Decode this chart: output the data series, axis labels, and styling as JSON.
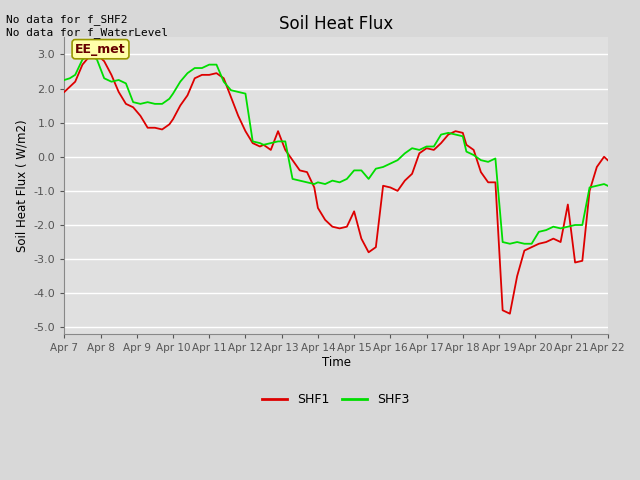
{
  "title": "Soil Heat Flux",
  "ylabel": "Soil Heat Flux ( W/m2)",
  "xlabel": "Time",
  "ylim": [
    -5.2,
    3.5
  ],
  "yticks": [
    -5.0,
    -4.0,
    -3.0,
    -2.0,
    -1.0,
    0.0,
    1.0,
    2.0,
    3.0
  ],
  "xtick_labels": [
    "Apr 7",
    "Apr 8",
    "Apr 9",
    "Apr 10",
    "Apr 11",
    "Apr 12",
    "Apr 13",
    "Apr 14",
    "Apr 15",
    "Apr 16",
    "Apr 17",
    "Apr 18",
    "Apr 19",
    "Apr 20",
    "Apr 21",
    "Apr 22"
  ],
  "fig_bg_color": "#d8d8d8",
  "plot_bg_color": "#e0e0e0",
  "grid_color": "#ffffff",
  "shf1_color": "#dd0000",
  "shf3_color": "#00dd00",
  "annotation_text": "No data for f_SHF2\nNo data for f_WaterLevel",
  "box_label": "EE_met",
  "shf1_x": [
    0,
    0.15,
    0.3,
    0.5,
    0.7,
    0.9,
    1.1,
    1.3,
    1.5,
    1.7,
    1.9,
    2.1,
    2.3,
    2.5,
    2.7,
    2.9,
    3.0,
    3.2,
    3.4,
    3.6,
    3.8,
    4.0,
    4.2,
    4.4,
    4.6,
    4.8,
    5.0,
    5.2,
    5.4,
    5.5,
    5.7,
    5.9,
    6.1,
    6.3,
    6.5,
    6.7,
    6.9,
    7.0,
    7.2,
    7.4,
    7.6,
    7.8,
    8.0,
    8.2,
    8.4,
    8.6,
    8.8,
    9.0,
    9.2,
    9.4,
    9.6,
    9.8,
    10.0,
    10.2,
    10.4,
    10.6,
    10.8,
    11.0,
    11.1,
    11.3,
    11.5,
    11.7,
    11.9,
    12.1,
    12.3,
    12.5,
    12.7,
    12.9,
    13.1,
    13.3,
    13.5,
    13.7,
    13.9,
    14.1,
    14.3,
    14.5,
    14.7,
    14.9,
    15.0
  ],
  "shf1_y": [
    1.9,
    2.05,
    2.2,
    2.7,
    2.95,
    3.0,
    2.8,
    2.4,
    1.9,
    1.55,
    1.45,
    1.2,
    0.85,
    0.85,
    0.8,
    0.95,
    1.1,
    1.5,
    1.8,
    2.3,
    2.4,
    2.4,
    2.45,
    2.3,
    1.75,
    1.2,
    0.75,
    0.4,
    0.3,
    0.35,
    0.2,
    0.75,
    0.2,
    -0.1,
    -0.4,
    -0.45,
    -0.9,
    -1.5,
    -1.85,
    -2.05,
    -2.1,
    -2.05,
    -1.6,
    -2.4,
    -2.8,
    -2.65,
    -0.85,
    -0.9,
    -1.0,
    -0.7,
    -0.5,
    0.1,
    0.25,
    0.2,
    0.4,
    0.65,
    0.75,
    0.7,
    0.35,
    0.2,
    -0.45,
    -0.75,
    -0.75,
    -4.5,
    -4.6,
    -3.5,
    -2.75,
    -2.65,
    -2.55,
    -2.5,
    -2.4,
    -2.5,
    -1.4,
    -3.1,
    -3.05,
    -1.0,
    -0.3,
    0.0,
    -0.1
  ],
  "shf3_x": [
    0,
    0.15,
    0.3,
    0.5,
    0.7,
    0.9,
    1.1,
    1.3,
    1.5,
    1.7,
    1.9,
    2.1,
    2.3,
    2.5,
    2.7,
    2.9,
    3.0,
    3.2,
    3.4,
    3.6,
    3.8,
    4.0,
    4.2,
    4.4,
    4.6,
    4.8,
    5.0,
    5.2,
    5.4,
    5.5,
    5.7,
    5.9,
    6.1,
    6.3,
    6.5,
    6.7,
    6.9,
    7.0,
    7.2,
    7.4,
    7.6,
    7.8,
    8.0,
    8.2,
    8.4,
    8.6,
    8.8,
    9.0,
    9.2,
    9.4,
    9.6,
    9.8,
    10.0,
    10.2,
    10.4,
    10.6,
    10.8,
    11.0,
    11.1,
    11.3,
    11.5,
    11.7,
    11.9,
    12.1,
    12.3,
    12.5,
    12.7,
    12.9,
    13.1,
    13.3,
    13.5,
    13.7,
    13.9,
    14.1,
    14.3,
    14.5,
    14.7,
    14.9,
    15.0
  ],
  "shf3_y": [
    2.25,
    2.3,
    2.4,
    2.85,
    3.0,
    2.85,
    2.3,
    2.2,
    2.25,
    2.15,
    1.6,
    1.55,
    1.6,
    1.55,
    1.55,
    1.7,
    1.85,
    2.2,
    2.45,
    2.6,
    2.6,
    2.7,
    2.7,
    2.2,
    1.95,
    1.9,
    1.85,
    0.45,
    0.4,
    0.35,
    0.4,
    0.45,
    0.45,
    -0.65,
    -0.7,
    -0.75,
    -0.8,
    -0.75,
    -0.8,
    -0.7,
    -0.75,
    -0.65,
    -0.4,
    -0.4,
    -0.65,
    -0.35,
    -0.3,
    -0.2,
    -0.1,
    0.1,
    0.25,
    0.2,
    0.3,
    0.3,
    0.65,
    0.7,
    0.65,
    0.6,
    0.15,
    0.05,
    -0.1,
    -0.15,
    -0.05,
    -2.5,
    -2.55,
    -2.5,
    -2.55,
    -2.55,
    -2.2,
    -2.15,
    -2.05,
    -2.1,
    -2.05,
    -2.0,
    -2.0,
    -0.9,
    -0.85,
    -0.8,
    -0.85
  ]
}
